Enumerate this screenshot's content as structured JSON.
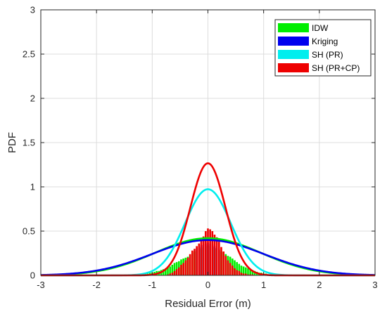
{
  "chart_data": {
    "type": "line",
    "title": "",
    "xlabel": "Residual Error (m)",
    "ylabel": "PDF",
    "xlim": [
      -3,
      3
    ],
    "ylim": [
      0,
      3
    ],
    "x_ticks": [
      -3,
      -2,
      -1,
      0,
      1,
      2,
      3
    ],
    "x_tick_labels": [
      "-3",
      "-2",
      "-1",
      "0",
      "1",
      "2",
      "3"
    ],
    "y_ticks": [
      0,
      0.5,
      1,
      1.5,
      2,
      2.5,
      3
    ],
    "y_tick_labels": [
      "0",
      "0.5",
      "1",
      "1.5",
      "2",
      "2.5",
      "3"
    ],
    "grid": true,
    "legend_position": "top-right",
    "series": [
      {
        "name": "IDW",
        "color": "#00ee00",
        "curve": {
          "type": "normal",
          "mean": 0.0,
          "std": 0.95
        },
        "histogram": {
          "bin_width": 0.04,
          "centers": [
            -1.32,
            -1.28,
            -1.24,
            -1.2,
            -1.16,
            -1.12,
            -1.08,
            -1.04,
            -1.0,
            -0.96,
            -0.92,
            -0.88,
            -0.84,
            -0.8,
            -0.76,
            -0.72,
            -0.68,
            -0.64,
            -0.6,
            -0.56,
            -0.52,
            -0.48,
            -0.44,
            -0.4,
            -0.36,
            -0.32,
            -0.28,
            -0.24,
            -0.2,
            -0.16,
            -0.12,
            -0.08,
            -0.04,
            0.0,
            0.04,
            0.08,
            0.12,
            0.16,
            0.2,
            0.24,
            0.28,
            0.32,
            0.36,
            0.4,
            0.44,
            0.48,
            0.52,
            0.56,
            0.6,
            0.64,
            0.68,
            0.72,
            0.76,
            0.8,
            0.84,
            0.88,
            0.92,
            0.96,
            1.0,
            1.04,
            1.08
          ],
          "values": [
            0.01,
            0.01,
            0.01,
            0.01,
            0.02,
            0.02,
            0.02,
            0.03,
            0.03,
            0.04,
            0.05,
            0.05,
            0.06,
            0.07,
            0.08,
            0.09,
            0.1,
            0.12,
            0.14,
            0.15,
            0.16,
            0.18,
            0.19,
            0.2,
            0.21,
            0.23,
            0.26,
            0.27,
            0.28,
            0.3,
            0.31,
            0.32,
            0.33,
            0.34,
            0.33,
            0.32,
            0.31,
            0.3,
            0.29,
            0.27,
            0.26,
            0.24,
            0.22,
            0.21,
            0.19,
            0.17,
            0.15,
            0.13,
            0.11,
            0.1,
            0.09,
            0.08,
            0.07,
            0.06,
            0.05,
            0.04,
            0.03,
            0.03,
            0.02,
            0.02,
            0.01
          ]
        }
      },
      {
        "name": "Kriging",
        "color": "#0000ee",
        "curve": {
          "type": "normal",
          "mean": 0.0,
          "std": 1.0
        },
        "histogram": {
          "bin_width": 0.04,
          "centers": [
            -0.2,
            -0.16,
            -0.12,
            -0.08,
            -0.04,
            0.0,
            0.04,
            0.08,
            0.12,
            0.16,
            0.2
          ],
          "values": [
            0.31,
            0.32,
            0.34,
            0.35,
            0.36,
            0.37,
            0.36,
            0.35,
            0.33,
            0.31,
            0.29
          ]
        }
      },
      {
        "name": "SH (PR)",
        "color": "#00eeee",
        "curve": {
          "type": "normal",
          "mean": 0.0,
          "std": 0.41
        }
      },
      {
        "name": "SH (PR+CP)",
        "color": "#ee0000",
        "curve": {
          "type": "normal",
          "mean": 0.0,
          "std": 0.315
        },
        "histogram": {
          "bin_width": 0.04,
          "centers": [
            -0.72,
            -0.68,
            -0.64,
            -0.6,
            -0.56,
            -0.52,
            -0.48,
            -0.44,
            -0.4,
            -0.36,
            -0.32,
            -0.28,
            -0.24,
            -0.2,
            -0.16,
            -0.12,
            -0.08,
            -0.04,
            0.0,
            0.04,
            0.08,
            0.12,
            0.16,
            0.2,
            0.24,
            0.28,
            0.32,
            0.36,
            0.4,
            0.44,
            0.48,
            0.52,
            0.56,
            0.6,
            0.64,
            0.68,
            0.72,
            0.76,
            0.8
          ],
          "values": [
            0.01,
            0.02,
            0.03,
            0.05,
            0.07,
            0.09,
            0.12,
            0.14,
            0.17,
            0.2,
            0.24,
            0.28,
            0.3,
            0.33,
            0.36,
            0.39,
            0.44,
            0.5,
            0.53,
            0.52,
            0.5,
            0.46,
            0.43,
            0.38,
            0.32,
            0.27,
            0.22,
            0.17,
            0.14,
            0.11,
            0.08,
            0.06,
            0.05,
            0.03,
            0.02,
            0.02,
            0.01,
            0.01,
            0.01
          ]
        }
      }
    ]
  }
}
